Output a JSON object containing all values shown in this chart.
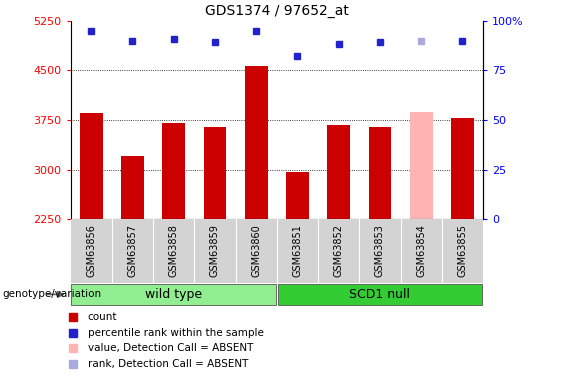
{
  "title": "GDS1374 / 97652_at",
  "samples": [
    "GSM63856",
    "GSM63857",
    "GSM63858",
    "GSM63859",
    "GSM63860",
    "GSM63851",
    "GSM63852",
    "GSM63853",
    "GSM63854",
    "GSM63855"
  ],
  "bar_values": [
    3850,
    3200,
    3700,
    3650,
    4570,
    2970,
    3680,
    3650,
    3870,
    3780
  ],
  "bar_colors": [
    "#cc0000",
    "#cc0000",
    "#cc0000",
    "#cc0000",
    "#cc0000",
    "#cc0000",
    "#cc0000",
    "#cc0000",
    "#ffb3b3",
    "#cc0000"
  ],
  "rank_values": [
    95,
    90,
    91,
    89,
    95,
    82,
    88,
    89,
    90,
    90
  ],
  "rank_colors": [
    "#2222cc",
    "#2222cc",
    "#2222cc",
    "#2222cc",
    "#2222cc",
    "#2222cc",
    "#2222cc",
    "#2222cc",
    "#aaaadd",
    "#2222cc"
  ],
  "ylim_left": [
    2250,
    5250
  ],
  "ylim_right": [
    0,
    100
  ],
  "yticks_left": [
    2250,
    3000,
    3750,
    4500,
    5250
  ],
  "yticks_right": [
    0,
    25,
    50,
    75,
    100
  ],
  "grid_values": [
    3000,
    3750,
    4500
  ],
  "group1_label": "wild type",
  "group2_label": "SCD1 null",
  "genotype_label": "genotype/variation",
  "legend_items": [
    {
      "label": "count",
      "color": "#cc0000"
    },
    {
      "label": "percentile rank within the sample",
      "color": "#2222cc"
    },
    {
      "label": "value, Detection Call = ABSENT",
      "color": "#ffb3b3"
    },
    {
      "label": "rank, Detection Call = ABSENT",
      "color": "#aaaadd"
    }
  ],
  "bar_bottom": 2250,
  "group1_color": "#90ee90",
  "group2_color": "#33cc33",
  "header_bg": "#d3d3d3"
}
